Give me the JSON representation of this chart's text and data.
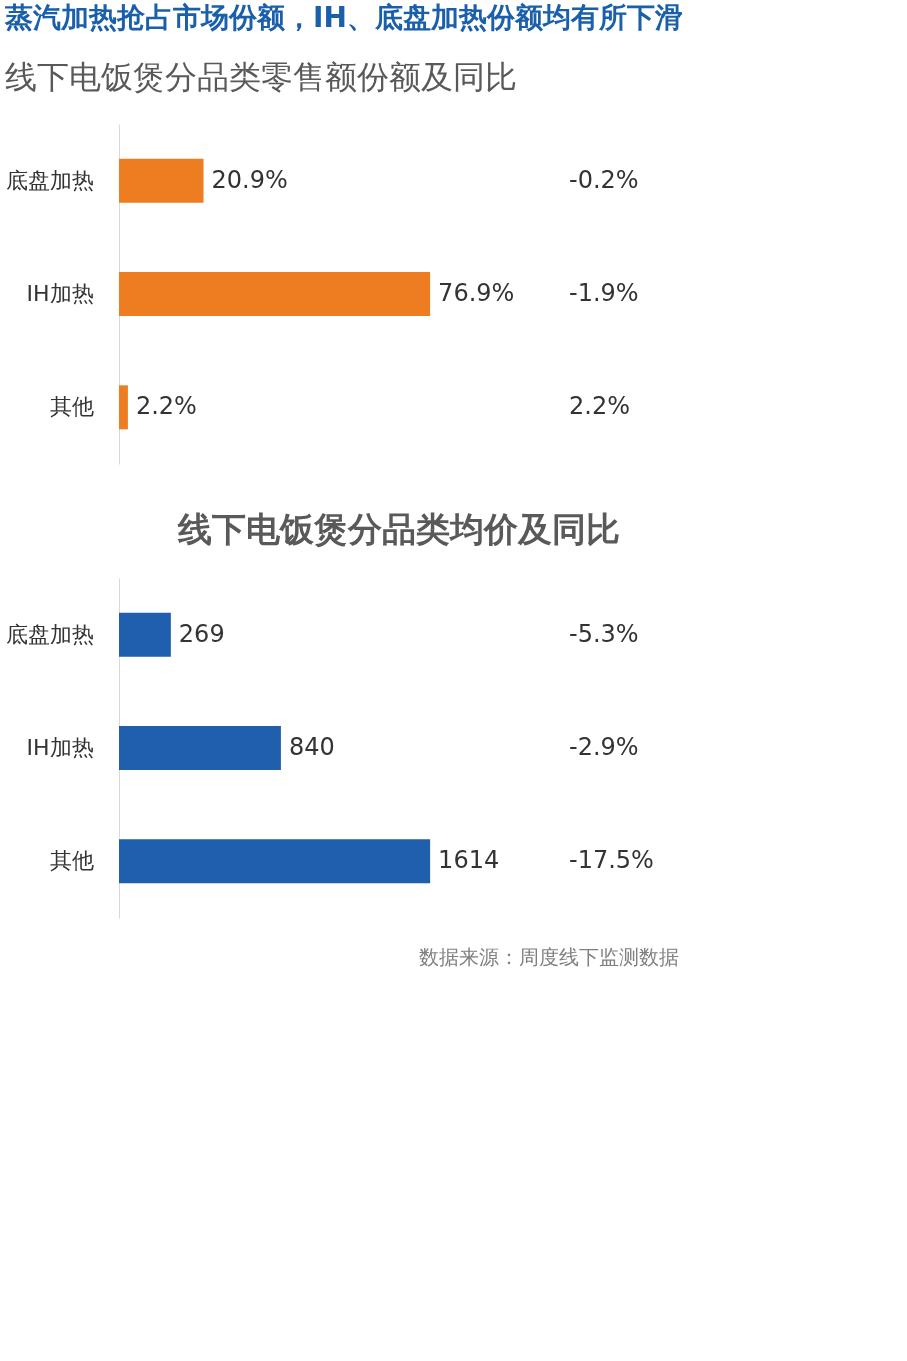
{
  "chart_data": [
    {
      "type": "bar",
      "orientation": "horizontal",
      "title": "蒸汽加热抢占市场份额，IH、底盘加热份额均有所下滑",
      "subtitle": "线下电饭煲分品类零售额份额及同比",
      "categories": [
        "底盘加热",
        "IH加热",
        "其他"
      ],
      "series": [
        {
          "color": "#ee7d22",
          "values": [
            20.9,
            76.9,
            2.2
          ],
          "value_labels": [
            "20.9%",
            "76.9%",
            "2.2%"
          ]
        }
      ],
      "annotations": [
        "-0.2%",
        "-1.9%",
        "2.2%"
      ],
      "grid": false
    },
    {
      "type": "bar",
      "orientation": "horizontal",
      "title": "线下电饭煲分品类均价及同比",
      "categories": [
        "底盘加热",
        "IH加热",
        "其他"
      ],
      "series": [
        {
          "color": "#1f5fae",
          "values": [
            269,
            840,
            1614
          ],
          "value_labels": [
            "269",
            "840",
            "1614"
          ]
        }
      ],
      "annotations": [
        "-5.3%",
        "-2.9%",
        "-17.5%",
        "数据来源：周度线下监测数据"
      ],
      "grid": false
    }
  ]
}
